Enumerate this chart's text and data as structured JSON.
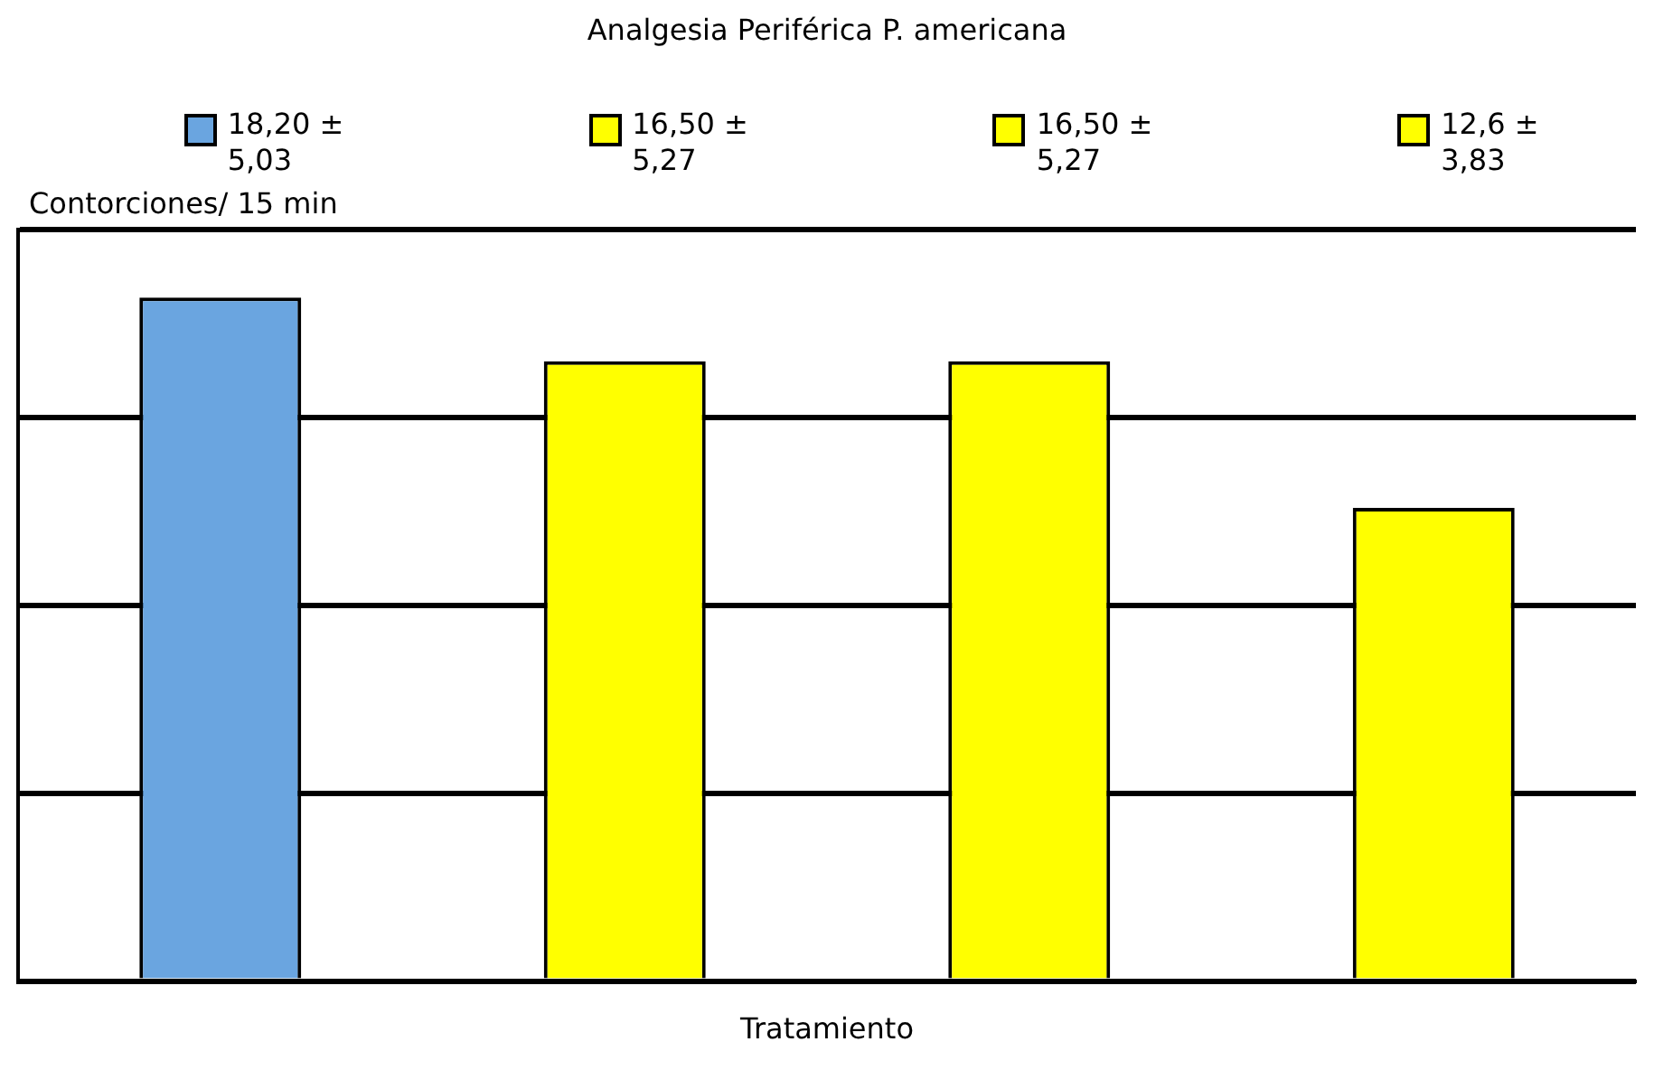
{
  "chart_data": {
    "type": "bar",
    "title": "Analgesia Periférica P. americana",
    "xlabel": "Tratamiento",
    "annotations": [
      "Contorciones/ 15 min"
    ],
    "categories": [
      null,
      null,
      null,
      null
    ],
    "values": [
      18.2,
      16.5,
      16.5,
      12.6
    ],
    "colors": [
      "#6aa5e0",
      "#ffff00",
      "#ffff00",
      "#ffff00"
    ],
    "value_labels": [
      "18,20 ± 5,03",
      "16,50 ± 5,27",
      "16,50 ± 5,27",
      "12,6 ± 3,83"
    ],
    "tick_labels": false,
    "grid": "y",
    "legend": false
  }
}
